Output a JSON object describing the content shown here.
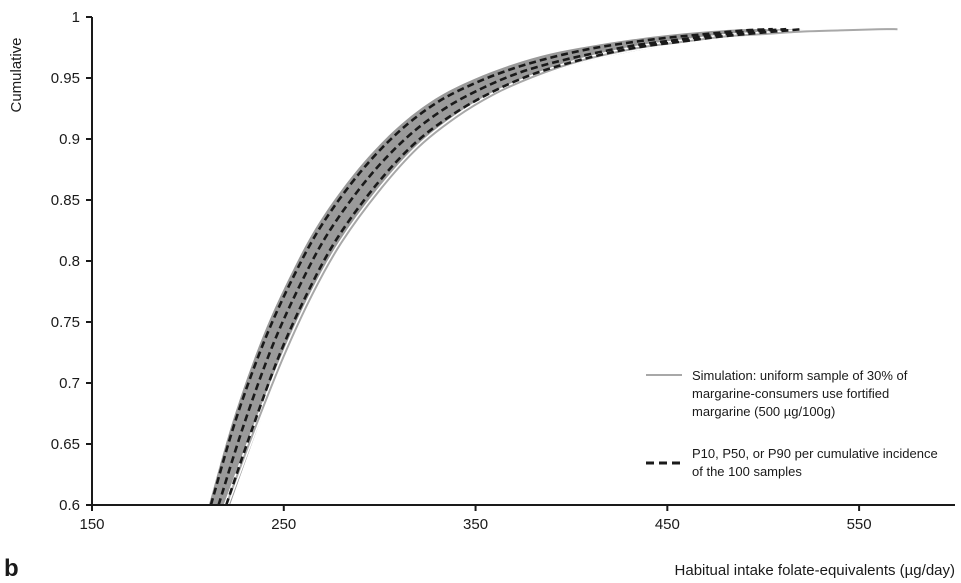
{
  "panel_label": "b",
  "colors": {
    "band": "#9a9a9a",
    "simulation": "#a8a8a8",
    "percentile": "#1a1a1a",
    "axis": "#1a1a1a"
  },
  "chart_data": {
    "type": "line",
    "title": "",
    "xlabel": "Habitual intake folate-equivalents (µg/day)",
    "ylabel": "Cumulative",
    "xlim": [
      150,
      600
    ],
    "ylim": [
      0.6,
      1.0
    ],
    "xticks": [
      150,
      250,
      350,
      450,
      550
    ],
    "xtick_labels": [
      "150",
      "250",
      "350",
      "450",
      "550"
    ],
    "yticks": [
      0.6,
      0.65,
      0.7,
      0.75,
      0.8,
      0.85,
      0.9,
      0.95,
      1.0
    ],
    "ytick_labels": [
      "0.6",
      "0.65",
      "0.7",
      "0.75",
      "0.8",
      "0.85",
      "0.9",
      "0.95",
      "1"
    ],
    "grid": false,
    "legend_position": "bottom-right",
    "legend": [
      {
        "style": "solid-grey",
        "lines": [
          "Simulation: uniform sample of 30% of",
          "margarine-consumers use fortified",
          "margarine (500 µg/100g)"
        ]
      },
      {
        "style": "dashed-black",
        "lines": [
          "P10, P50, or P90 per cumulative incidence",
          "of the 100 samples"
        ]
      }
    ],
    "series": [
      {
        "kind": "simulation",
        "x": [
          220,
          235,
          250,
          265,
          280,
          300,
          320,
          340,
          360,
          380,
          400,
          420,
          440,
          460,
          480,
          500,
          520,
          540,
          560,
          570
        ],
        "y": [
          0.6,
          0.663,
          0.722,
          0.773,
          0.815,
          0.858,
          0.893,
          0.918,
          0.937,
          0.951,
          0.962,
          0.97,
          0.976,
          0.98,
          0.984,
          0.986,
          0.988,
          0.989,
          0.99,
          0.99
        ]
      },
      {
        "kind": "percentile",
        "x": [
          212,
          225,
          240,
          255,
          270,
          290,
          310,
          330,
          350,
          370,
          390,
          410,
          430,
          450,
          470,
          490,
          505
        ],
        "y": [
          0.6,
          0.67,
          0.735,
          0.787,
          0.83,
          0.873,
          0.906,
          0.93,
          0.946,
          0.958,
          0.967,
          0.974,
          0.979,
          0.983,
          0.986,
          0.989,
          0.99
        ]
      },
      {
        "kind": "percentile",
        "x": [
          216,
          229,
          244,
          259,
          274,
          294,
          314,
          334,
          354,
          374,
          394,
          414,
          434,
          454,
          474,
          494,
          512
        ],
        "y": [
          0.6,
          0.665,
          0.73,
          0.782,
          0.825,
          0.868,
          0.901,
          0.925,
          0.942,
          0.955,
          0.964,
          0.971,
          0.977,
          0.981,
          0.985,
          0.988,
          0.99
        ]
      },
      {
        "kind": "percentile",
        "x": [
          220,
          233,
          248,
          263,
          278,
          298,
          318,
          338,
          358,
          378,
          398,
          418,
          438,
          458,
          478,
          498,
          520
        ],
        "y": [
          0.6,
          0.66,
          0.724,
          0.776,
          0.819,
          0.862,
          0.896,
          0.92,
          0.938,
          0.952,
          0.962,
          0.97,
          0.976,
          0.98,
          0.984,
          0.987,
          0.99
        ]
      }
    ],
    "band": {
      "x_upper": [
        211,
        224,
        239,
        254,
        269,
        289,
        309,
        329,
        349,
        369,
        389,
        409,
        429,
        449,
        469,
        489,
        505
      ],
      "y_upper": [
        0.6,
        0.672,
        0.738,
        0.79,
        0.833,
        0.876,
        0.909,
        0.933,
        0.949,
        0.961,
        0.97,
        0.976,
        0.981,
        0.985,
        0.988,
        0.99,
        0.99
      ],
      "x_lower": [
        222,
        235,
        250,
        265,
        280,
        300,
        320,
        340,
        360,
        380,
        400,
        420,
        440,
        460,
        480,
        500,
        522
      ],
      "y_lower": [
        0.6,
        0.657,
        0.72,
        0.772,
        0.815,
        0.858,
        0.892,
        0.917,
        0.935,
        0.949,
        0.96,
        0.968,
        0.974,
        0.979,
        0.983,
        0.986,
        0.99
      ]
    }
  }
}
